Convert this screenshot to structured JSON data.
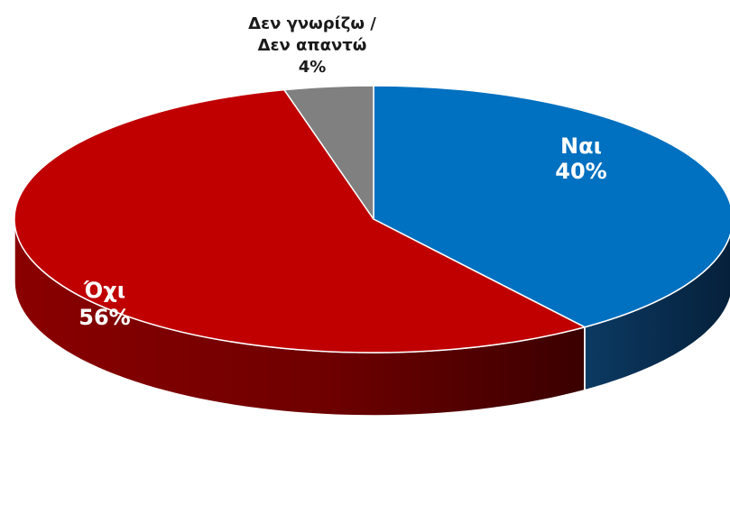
{
  "chart_data": {
    "type": "pie",
    "style": "3d",
    "title": "",
    "slices": [
      {
        "label": "Ναι",
        "value": 40,
        "value_label": "40%",
        "color": "#0070C0",
        "side_color": "#0A2A48",
        "label_color": "#ffffff"
      },
      {
        "label": "Όχι",
        "value": 56,
        "value_label": "56%",
        "color": "#C00000",
        "side_color": "#7A0000",
        "label_color": "#ffffff"
      },
      {
        "label_lines": [
          "Δεν γνωρίζω /",
          "Δεν απαντώ"
        ],
        "value": 4,
        "value_label": "4%",
        "color": "#808080",
        "side_color": "#4A4A4A",
        "label_color": "#1a1a1a"
      }
    ]
  }
}
